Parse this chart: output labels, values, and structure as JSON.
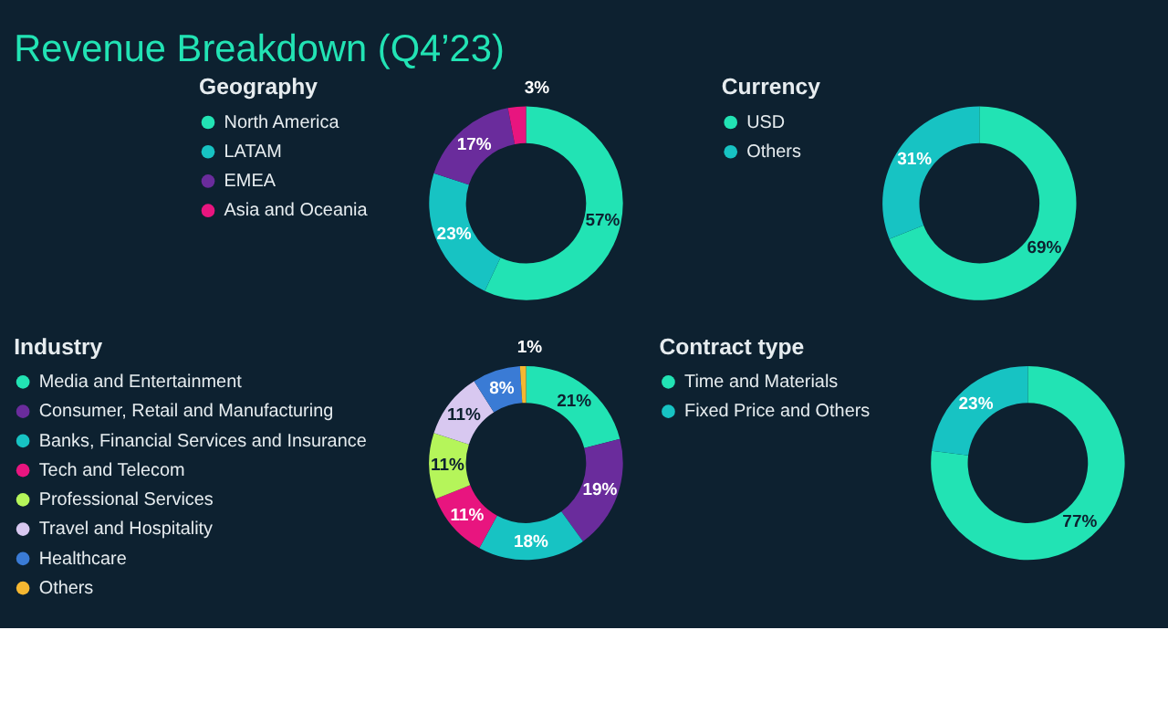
{
  "chart_data": [
    {
      "type": "donut",
      "title": "Revenue Breakdown (Q4’23)",
      "legend_title": "Geography",
      "legend": "left",
      "categories": [
        "North America",
        "LATAM",
        "EMEA",
        "Asia and Oceania"
      ],
      "values": [
        57,
        23,
        17,
        3
      ],
      "value_labels": [
        "57%",
        "23%",
        "17%",
        "3%"
      ],
      "colors": [
        "#22e3b4",
        "#17c3c3",
        "#6a2c9c",
        "#e8157f"
      ]
    },
    {
      "type": "donut",
      "legend_title": "Currency",
      "legend": "left",
      "categories": [
        "USD",
        "Others"
      ],
      "values": [
        69,
        31
      ],
      "value_labels": [
        "69%",
        "31%"
      ],
      "colors": [
        "#22e3b4",
        "#17c3c3"
      ]
    },
    {
      "type": "donut",
      "legend_title": "Industry",
      "legend": "left",
      "categories": [
        "Media and Entertainment",
        "Consumer, Retail and Manufacturing",
        "Banks, Financial Services and Insurance",
        "Tech and Telecom",
        "Professional Services",
        "Travel and Hospitality",
        "Healthcare",
        "Others"
      ],
      "values": [
        21,
        19,
        18,
        11,
        11,
        11,
        8,
        1
      ],
      "value_labels": [
        "21%",
        "19%",
        "18%",
        "11%",
        "11%",
        "11%",
        "8%",
        "1%"
      ],
      "colors": [
        "#22e3b4",
        "#6a2c9c",
        "#17c3c3",
        "#e8157f",
        "#b5f55a",
        "#d8c8f0",
        "#3a7bd5",
        "#f5b731"
      ]
    },
    {
      "type": "donut",
      "legend_title": "Contract type",
      "legend": "left",
      "categories": [
        "Time and Materials",
        "Fixed Price and Others"
      ],
      "values": [
        77,
        23
      ],
      "value_labels": [
        "77%",
        "23%"
      ],
      "colors": [
        "#22e3b4",
        "#17c3c3"
      ]
    }
  ]
}
